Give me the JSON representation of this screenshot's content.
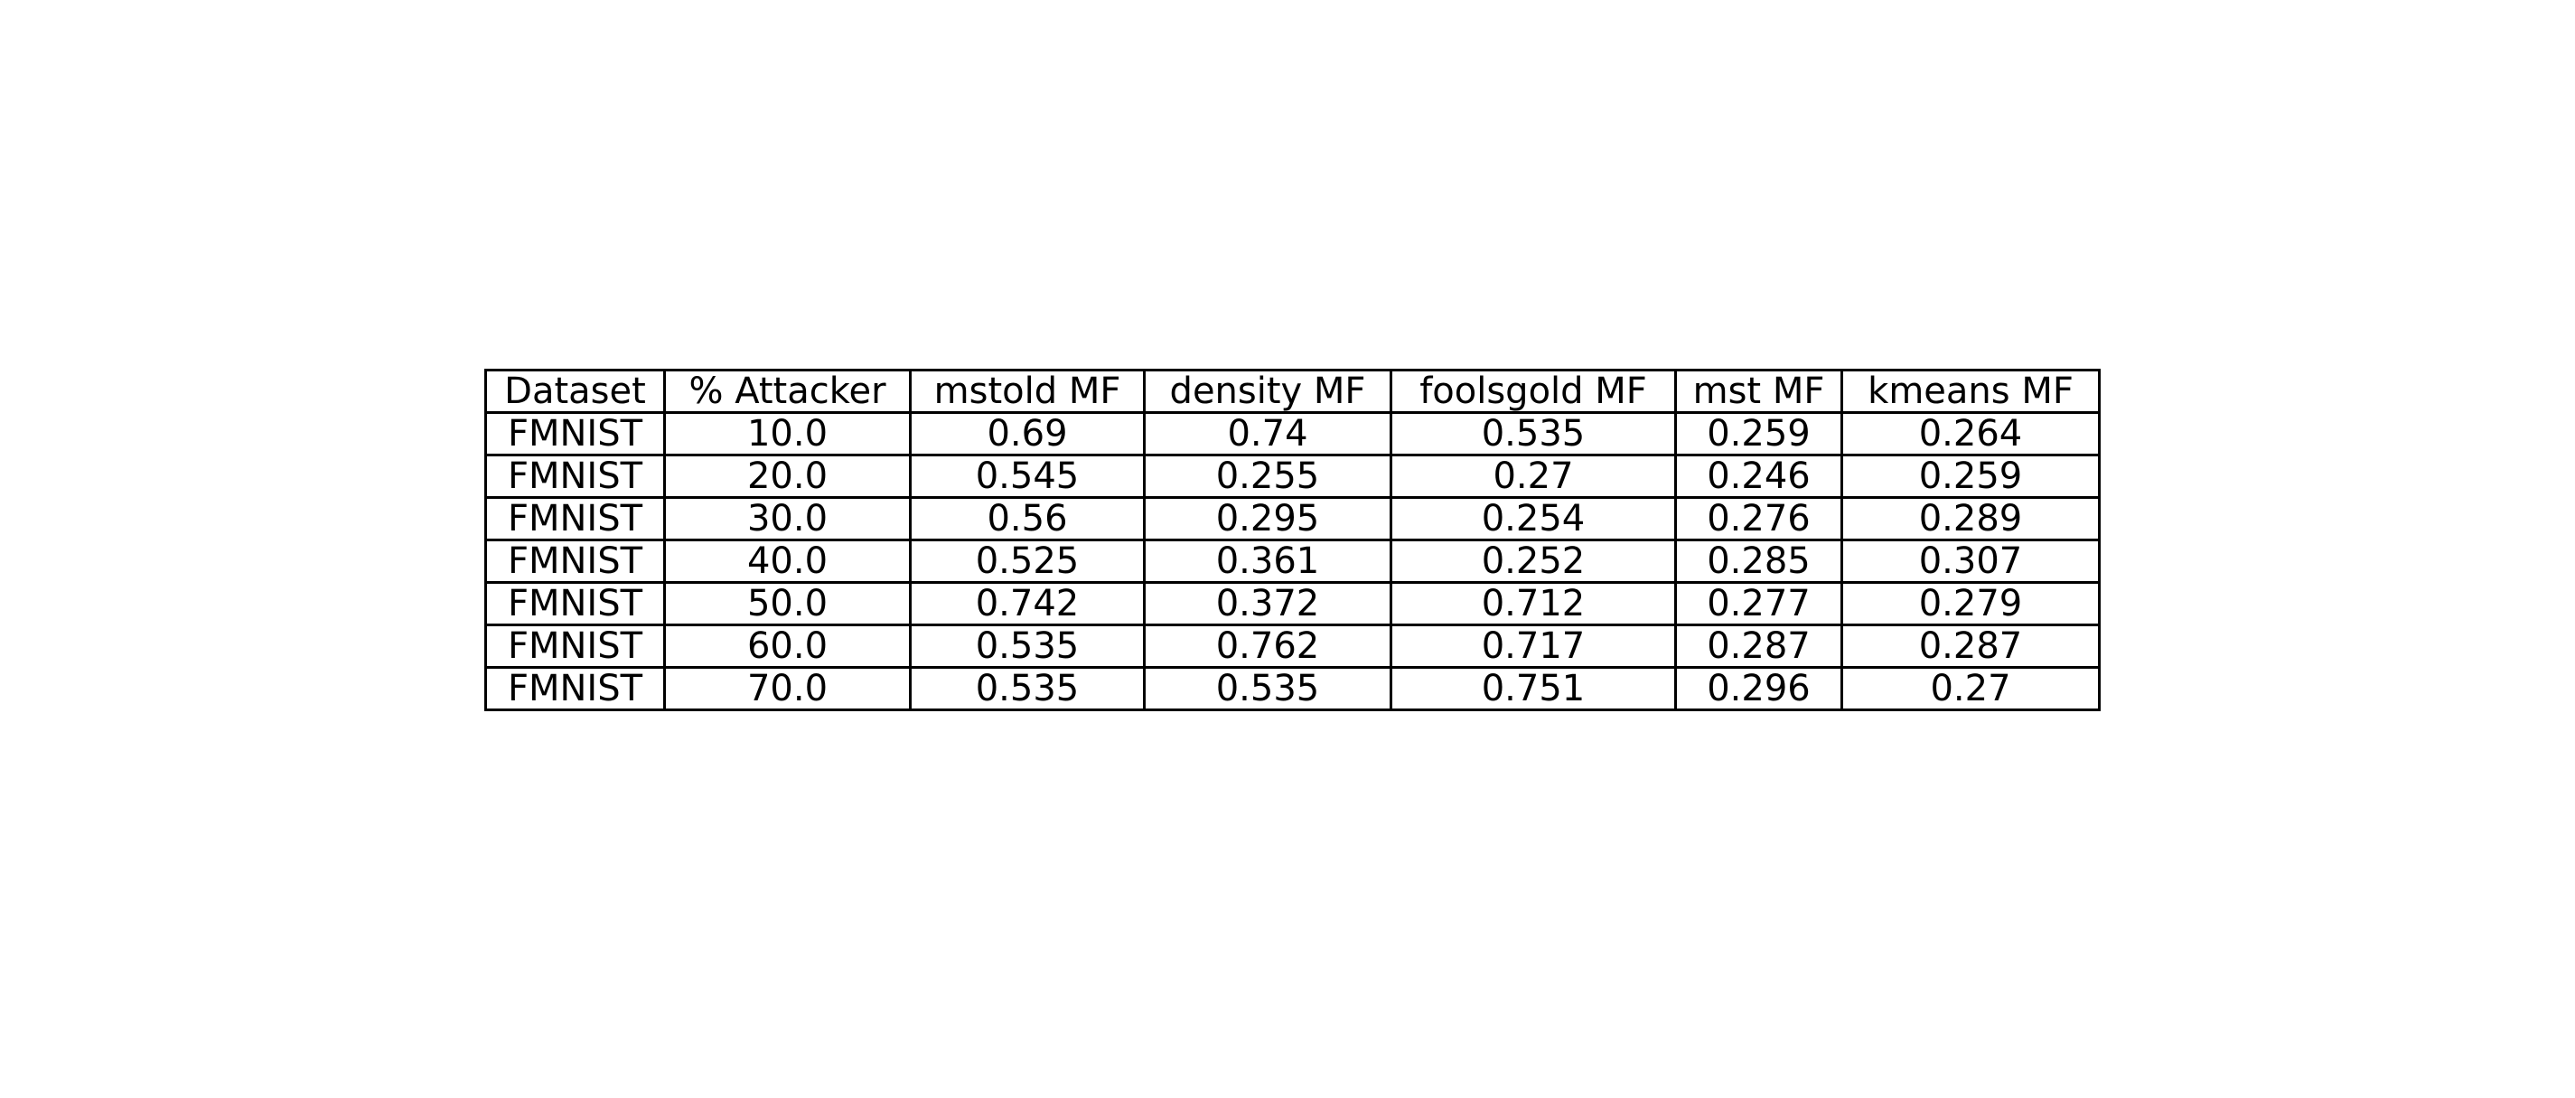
{
  "chart_data": {
    "type": "table",
    "columns": [
      "Dataset",
      "% Attacker",
      "mstold MF",
      "density MF",
      "foolsgold MF",
      "mst MF",
      "kmeans MF"
    ],
    "rows": [
      [
        "FMNIST",
        "10.0",
        "0.69",
        "0.74",
        "0.535",
        "0.259",
        "0.264"
      ],
      [
        "FMNIST",
        "20.0",
        "0.545",
        "0.255",
        "0.27",
        "0.246",
        "0.259"
      ],
      [
        "FMNIST",
        "30.0",
        "0.56",
        "0.295",
        "0.254",
        "0.276",
        "0.289"
      ],
      [
        "FMNIST",
        "40.0",
        "0.525",
        "0.361",
        "0.252",
        "0.285",
        "0.307"
      ],
      [
        "FMNIST",
        "50.0",
        "0.742",
        "0.372",
        "0.712",
        "0.277",
        "0.279"
      ],
      [
        "FMNIST",
        "60.0",
        "0.535",
        "0.762",
        "0.717",
        "0.287",
        "0.287"
      ],
      [
        "FMNIST",
        "70.0",
        "0.535",
        "0.535",
        "0.751",
        "0.296",
        "0.27"
      ]
    ]
  }
}
